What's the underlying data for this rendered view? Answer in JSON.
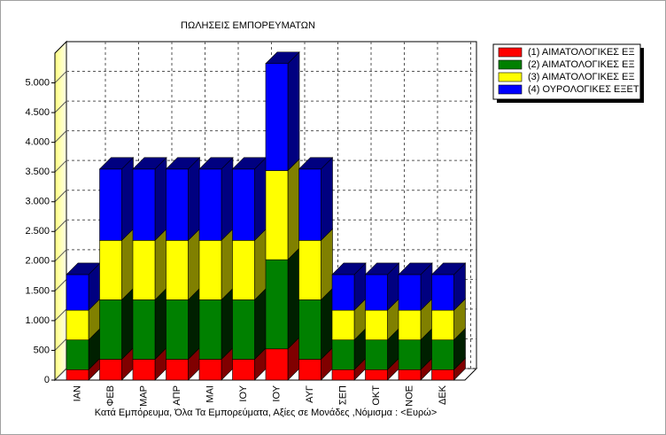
{
  "chart_data": {
    "type": "bar3d_stacked",
    "title": "ΠΩΛΗΣΕΙΣ ΕΜΠΟΡΕΥΜΑΤΩΝ",
    "x_label": "Κατά Εμπόρευμα, Όλα Τα Εμπορεύματα,  Αξίες σε Μονάδες ,Νόμισμα : <Ευρώ>",
    "categories": [
      "ΙΑΝ",
      "ΦΕΒ",
      "ΜΑΡ",
      "ΑΠΡ",
      "ΜΑΙ",
      "ΙΟΥ",
      "ΙΟΥ",
      "ΑΥΓ",
      "ΣΕΠ",
      "ΟΚΤ",
      "ΝΟΕ",
      "ΔΕΚ"
    ],
    "series": [
      {
        "name": "(1) ΑΙΜΑΤΟΛΟΓΙΚΕΣ ΕΞ",
        "color": "#ff0000",
        "side_color": "#800000",
        "values": [
          175,
          350,
          350,
          350,
          350,
          350,
          525,
          350,
          175,
          175,
          175,
          175
        ]
      },
      {
        "name": "(2) ΑΙΜΑΤΟΛΟΓΙΚΕΣ ΕΞ",
        "color": "#008000",
        "side_color": "#002000",
        "values": [
          500,
          1000,
          1000,
          1000,
          1000,
          1000,
          1500,
          1000,
          500,
          500,
          500,
          500
        ]
      },
      {
        "name": "(3) ΑΙΜΑΤΟΛΟΓΙΚΕΣ ΕΞ",
        "color": "#ffff00",
        "side_color": "#808000",
        "values": [
          500,
          1000,
          1000,
          1000,
          1000,
          1000,
          1500,
          1000,
          500,
          500,
          500,
          500
        ]
      },
      {
        "name": "(4) ΟΥΡΟΛΟΓΙΚΕΣ ΕΞΕΤ",
        "color": "#0000ff",
        "side_color": "#000080",
        "values": [
          600,
          1200,
          1200,
          1200,
          1200,
          1200,
          1800,
          1200,
          600,
          600,
          600,
          600
        ]
      }
    ],
    "ylim": [
      0,
      5500
    ],
    "yticks": [
      0,
      500,
      {
        "value": 1000,
        "label": "1.000"
      },
      {
        "value": 1500,
        "label": "1.500"
      },
      {
        "value": 2000,
        "label": "2.000"
      },
      {
        "value": 2500,
        "label": "2.500"
      },
      {
        "value": 3000,
        "label": "3.000"
      },
      {
        "value": 3500,
        "label": "3.500"
      },
      {
        "value": 4000,
        "label": "4.000"
      },
      {
        "value": 4500,
        "label": "4.500"
      },
      {
        "value": 5000,
        "label": "5.000"
      }
    ],
    "grid": true
  }
}
